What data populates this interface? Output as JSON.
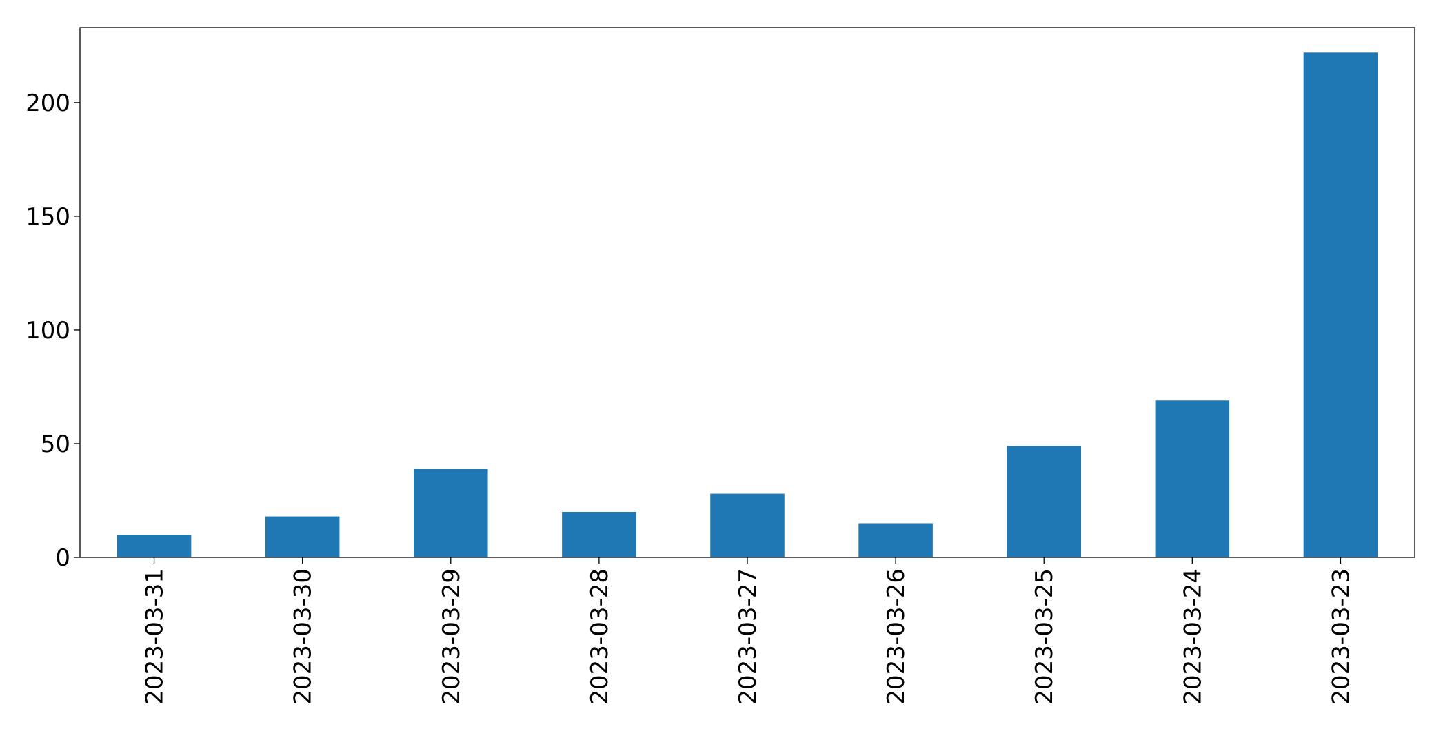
{
  "chart_data": {
    "type": "bar",
    "categories": [
      "2023-03-31",
      "2023-03-30",
      "2023-03-29",
      "2023-03-28",
      "2023-03-27",
      "2023-03-26",
      "2023-03-25",
      "2023-03-24",
      "2023-03-23"
    ],
    "values": [
      10,
      18,
      39,
      20,
      28,
      15,
      49,
      69,
      222
    ],
    "color": "#1f77b4",
    "ylim": [
      0,
      233
    ],
    "yticks": [
      0,
      50,
      100,
      150,
      200
    ],
    "grid": false
  }
}
